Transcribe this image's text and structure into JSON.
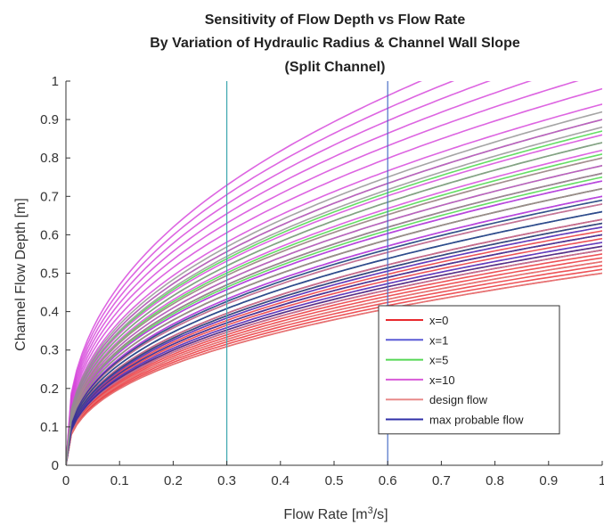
{
  "chart_data": {
    "type": "line",
    "title_lines": [
      "Sensitivity of Flow Depth vs Flow Rate",
      "By Variation of Hydraulic Radius  & Channel Wall Slope",
      "(Split Channel)"
    ],
    "xlabel_prefix": "Flow Rate [m",
    "xlabel_sup": "3",
    "xlabel_suffix": "/s]",
    "ylabel": "Channel Flow Depth [m]",
    "xlim": [
      0,
      1
    ],
    "ylim": [
      0,
      1
    ],
    "x_ticks": [
      "0",
      "0.1",
      "0.2",
      "0.3",
      "0.4",
      "0.5",
      "0.6",
      "0.7",
      "0.8",
      "0.9",
      "1"
    ],
    "y_ticks": [
      "0",
      "0.1",
      "0.2",
      "0.3",
      "0.4",
      "0.5",
      "0.6",
      "0.7",
      "0.8",
      "0.9",
      "1"
    ],
    "grid": false,
    "legend_position": "lower-right",
    "curve_model": "y = a * x^0.4",
    "series": [
      {
        "name": "x=0",
        "color": "#e8282e",
        "depth_at_q1": [
          0.5,
          0.51,
          0.52,
          0.53,
          0.54,
          0.55,
          0.56,
          0.57,
          0.58,
          0.59,
          0.6,
          0.61,
          0.62,
          0.63,
          0.64
        ]
      },
      {
        "name": "x=1",
        "color": "#3a3adf",
        "depth_at_q1": [
          0.56,
          0.58,
          0.6,
          0.62,
          0.64,
          0.66,
          0.68,
          0.7,
          0.72,
          0.74,
          0.76
        ]
      },
      {
        "name": "x=5",
        "color": "#3ed63e",
        "depth_at_q1": [
          0.63,
          0.66,
          0.69,
          0.72,
          0.75,
          0.78,
          0.81,
          0.84,
          0.87,
          0.9
        ]
      },
      {
        "name": "x=10",
        "color": "#d43fd9",
        "depth_at_q1": [
          0.7,
          0.74,
          0.78,
          0.82,
          0.86,
          0.9,
          0.94,
          0.98,
          1.02,
          1.06,
          1.1,
          1.14,
          1.18
        ]
      },
      {
        "name": "design flow",
        "color": "#e37a7a",
        "depth_at_q1": [
          0.5,
          0.53,
          0.56,
          0.6,
          0.64,
          0.68,
          0.72,
          0.76,
          0.8
        ]
      },
      {
        "name": "max probable flow",
        "color": "#2a2a9a",
        "depth_at_q1": [
          0.57,
          0.6,
          0.63,
          0.66,
          0.69
        ]
      },
      {
        "name": "",
        "color": "#8e8e8e",
        "depth_at_q1": [
          0.72,
          0.76,
          0.8,
          0.84,
          0.88,
          0.92
        ]
      }
    ],
    "vertical_lines": [
      {
        "x": 0.3,
        "color": "#3fa7b0"
      },
      {
        "x": 0.6,
        "color": "#4b6fc6"
      }
    ],
    "legend": [
      {
        "label": "x=0",
        "color": "#e8282e"
      },
      {
        "label": "x=1",
        "color": "#5b5bd6"
      },
      {
        "label": "x=5",
        "color": "#54d654"
      },
      {
        "label": "x=10",
        "color": "#d85ad8"
      },
      {
        "label": "design flow",
        "color": "#e88a8a"
      },
      {
        "label": "max probable flow",
        "color": "#2f2fa8"
      }
    ]
  }
}
